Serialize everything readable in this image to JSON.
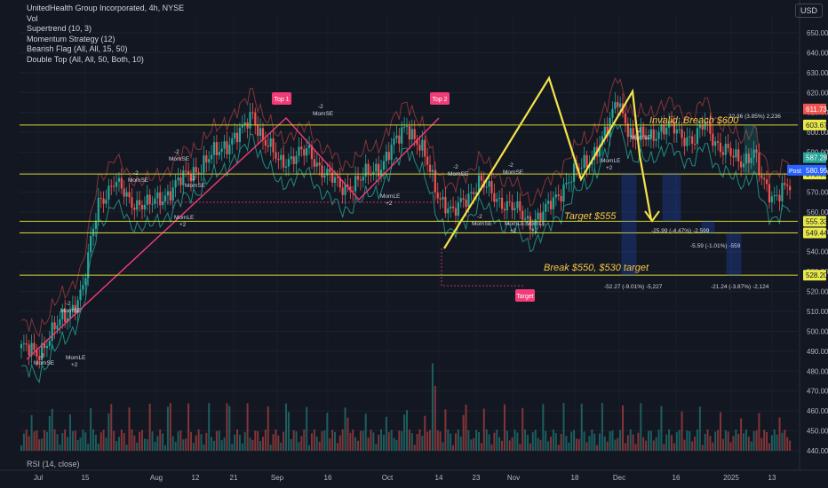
{
  "header": {
    "title": "UnitedHealth Group Incorporated, 4h, NYSE",
    "indicators": [
      "Vol",
      "Supertrend (10, 3)",
      "Momentum Strategy (12)",
      "Bearish Flag (All, All, 15, 50)",
      "Double Top (All, All, 50, Both, 10)"
    ],
    "currency": "USD"
  },
  "rsi_label": "RSI (14, close)",
  "colors": {
    "background": "#131722",
    "up": "#26a69a",
    "down": "#ef5350",
    "pattern": "#f23c78",
    "annotation": "#f6c643",
    "level": "#d4d436"
  },
  "chart_data": {
    "type": "candlestick",
    "y_ticks": [
      440,
      450,
      460,
      470,
      480,
      490,
      500,
      510,
      520,
      530,
      540,
      550,
      560,
      570,
      580,
      590,
      600,
      610,
      620,
      630,
      640,
      650
    ],
    "ylim": [
      436,
      657
    ],
    "x_ticks": [
      "Jul",
      "15",
      "Aug",
      "12",
      "21",
      "Sep",
      "16",
      "Oct",
      "14",
      "23",
      "Nov",
      "18",
      "Dec",
      "16",
      "2025",
      "13"
    ],
    "close_path": [
      [
        0,
        492
      ],
      [
        6,
        488
      ],
      [
        12,
        500
      ],
      [
        18,
        508
      ],
      [
        24,
        522
      ],
      [
        30,
        565
      ],
      [
        36,
        575
      ],
      [
        42,
        566
      ],
      [
        50,
        563
      ],
      [
        58,
        571
      ],
      [
        66,
        580
      ],
      [
        72,
        585
      ],
      [
        80,
        595
      ],
      [
        86,
        600
      ],
      [
        90,
        610
      ],
      [
        94,
        597
      ],
      [
        100,
        585
      ],
      [
        106,
        588
      ],
      [
        112,
        590
      ],
      [
        118,
        580
      ],
      [
        124,
        572
      ],
      [
        132,
        576
      ],
      [
        140,
        584
      ],
      [
        146,
        595
      ],
      [
        150,
        605
      ],
      [
        156,
        590
      ],
      [
        162,
        570
      ],
      [
        168,
        558
      ],
      [
        172,
        566
      ],
      [
        178,
        575
      ],
      [
        184,
        568
      ],
      [
        190,
        563
      ],
      [
        198,
        555
      ],
      [
        204,
        560
      ],
      [
        212,
        575
      ],
      [
        220,
        585
      ],
      [
        228,
        600
      ],
      [
        232,
        618
      ],
      [
        238,
        595
      ],
      [
        246,
        600
      ],
      [
        254,
        602
      ],
      [
        262,
        595
      ],
      [
        266,
        605
      ],
      [
        272,
        592
      ],
      [
        276,
        588
      ],
      [
        280,
        586
      ],
      [
        285,
        590
      ],
      [
        288,
        575
      ],
      [
        292,
        568
      ],
      [
        296,
        572
      ]
    ],
    "x_total": 300,
    "horizontal_levels": [
      {
        "price": 603.67,
        "label": "603.67"
      },
      {
        "price": 579.08,
        "label": "579.08"
      },
      {
        "price": 555.33,
        "label": "555.33"
      },
      {
        "price": 549.44,
        "label": "549.44"
      },
      {
        "price": 528.2,
        "label": "528.20"
      }
    ],
    "price_badges": [
      {
        "price": 611.73,
        "label": "611.73",
        "color": "#ef5350"
      },
      {
        "price": 587.28,
        "label": "587.28",
        "color": "#26a69a"
      },
      {
        "price": 580.95,
        "label": "580.95",
        "color": "#2962ff",
        "prefix": "Post"
      }
    ],
    "annotations": [
      {
        "text": "Invalid: Breach $600",
        "color": "#f6c643"
      },
      {
        "text": "Target $555",
        "color": "#f6c643"
      },
      {
        "text": "Break $550, $530 target",
        "color": "#f6c643"
      },
      {
        "text": "Top 1",
        "color": "#f23c78"
      },
      {
        "text": "Top 2",
        "color": "#f23c78"
      },
      {
        "text": "Target",
        "color": "#f23c78"
      }
    ],
    "measurements": [
      "22.36 (3.85%) 2,236",
      "-25.99 (-4.47%) -2,599",
      "-5.59 (-1.01%) -559",
      "-52.27 (-9.01%) -5,227",
      "-21.24 (-3.87%) -2,124"
    ],
    "signal_labels": [
      "MomSE",
      "MomLE",
      "+2",
      "-2"
    ]
  }
}
